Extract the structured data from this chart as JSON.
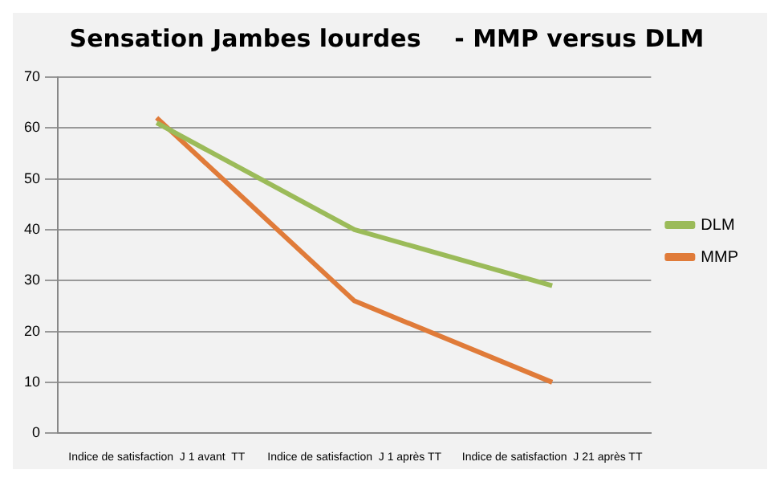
{
  "chart_data": {
    "type": "line",
    "title": "Sensation Jambes lourdes    - MMP versus DLM",
    "categories": [
      "Indice de satisfaction  J 1 avant  TT",
      "Indice de satisfaction  J 1 après TT",
      "Indice de satisfaction  J 21 après TT"
    ],
    "series": [
      {
        "name": "DLM",
        "color": "#9bbb59",
        "values": [
          61,
          40,
          29
        ]
      },
      {
        "name": "MMP",
        "color": "#e07b39",
        "values": [
          62,
          26,
          10
        ]
      }
    ],
    "ylim": [
      0,
      70
    ],
    "yticks": [
      0,
      10,
      20,
      30,
      40,
      50,
      60,
      70
    ],
    "grid": "y",
    "legend": "right",
    "marker": "none"
  }
}
